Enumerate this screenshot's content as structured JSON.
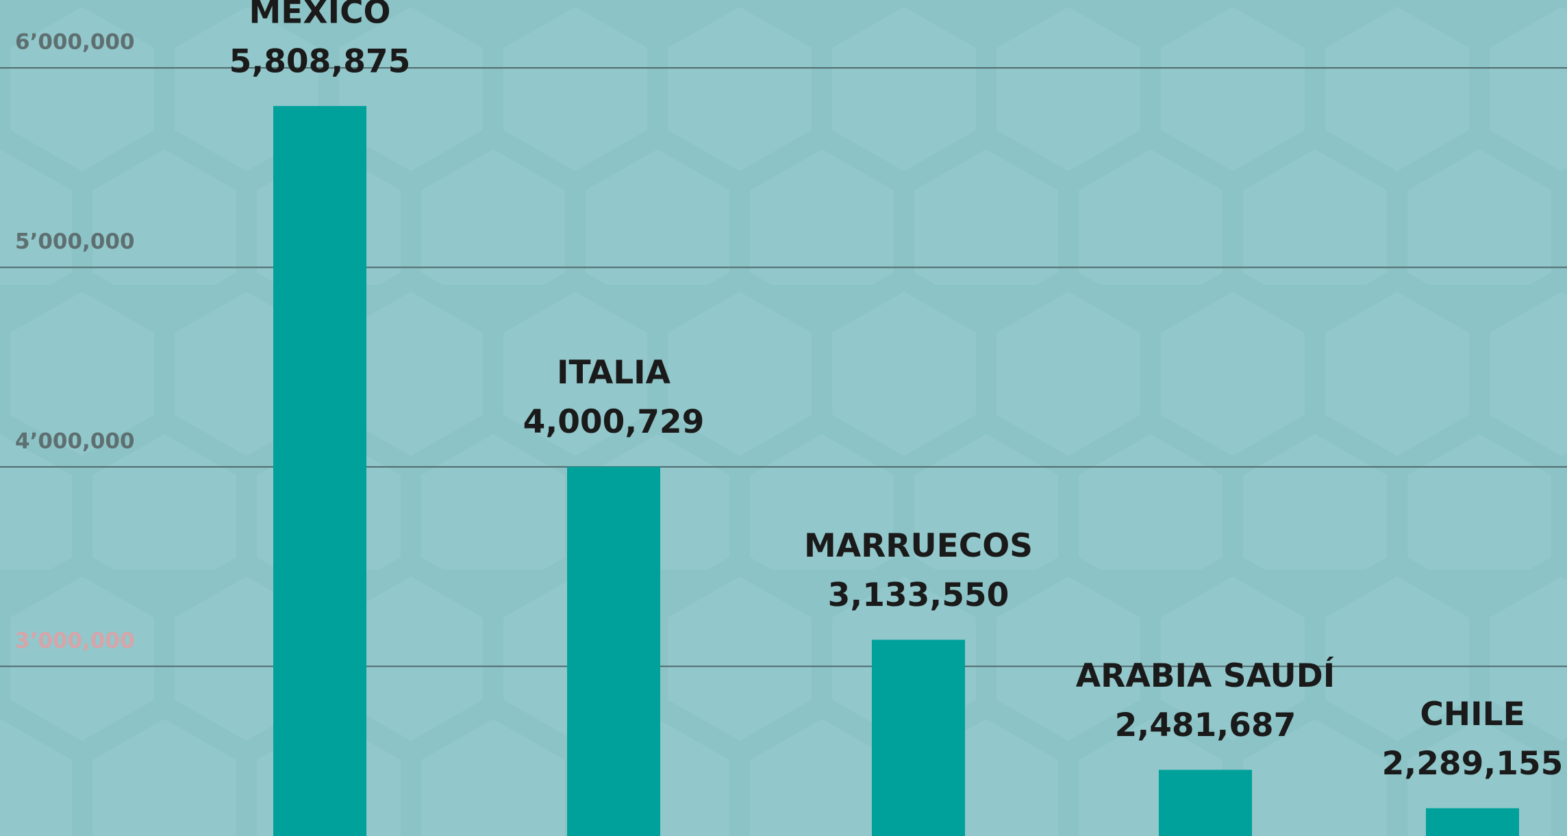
{
  "chart_data": {
    "type": "bar",
    "categories": [
      "MÉXICO",
      "ITALIA",
      "MARRUECOS",
      "ARABIA SAUDÍ",
      "CHILE"
    ],
    "values": [
      5808875,
      4000729,
      3133550,
      2481687,
      2289155
    ],
    "value_labels": [
      "5,808,875",
      "4,000,729",
      "3,133,550",
      "2,481,687",
      "2,289,155"
    ],
    "color": "#00a19a",
    "ylim": [
      2150000,
      6340000
    ],
    "yticks": [
      {
        "value": 3000000,
        "label": "3’000,000"
      },
      {
        "value": 4000000,
        "label": "4’000,000"
      },
      {
        "value": 5000000,
        "label": "5’000,000"
      },
      {
        "value": 6000000,
        "label": "6’000,000"
      }
    ],
    "grid": true
  }
}
